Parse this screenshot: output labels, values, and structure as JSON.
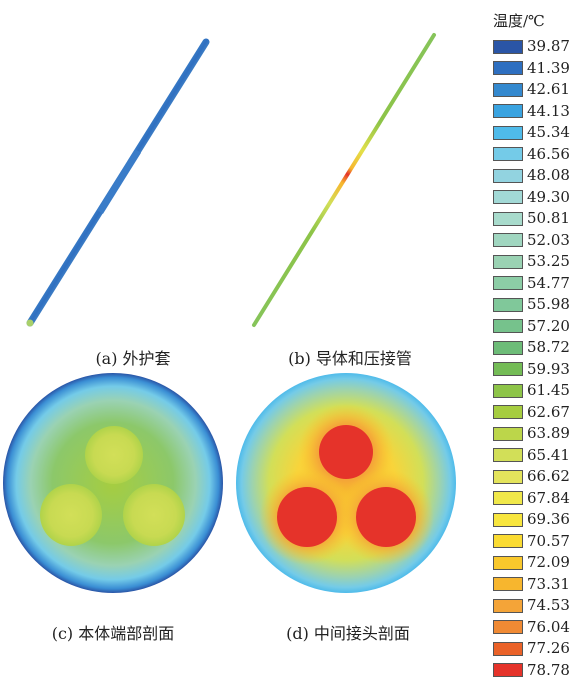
{
  "legend": {
    "title": "温度/℃",
    "items": [
      {
        "label": "39.87",
        "color": "#2a55a6"
      },
      {
        "label": "41.39",
        "color": "#2e6fc0"
      },
      {
        "label": "42.61",
        "color": "#3489cf"
      },
      {
        "label": "44.13",
        "color": "#3aa3e0"
      },
      {
        "label": "45.34",
        "color": "#4fbbea"
      },
      {
        "label": "46.56",
        "color": "#74cbe8"
      },
      {
        "label": "48.08",
        "color": "#92d3e0"
      },
      {
        "label": "49.30",
        "color": "#a2d9d6"
      },
      {
        "label": "50.81",
        "color": "#a8dbcc"
      },
      {
        "label": "52.03",
        "color": "#a0d6c0"
      },
      {
        "label": "53.25",
        "color": "#9ad2b3"
      },
      {
        "label": "54.77",
        "color": "#8ccda6"
      },
      {
        "label": "55.98",
        "color": "#80c89a"
      },
      {
        "label": "57.20",
        "color": "#76c28c"
      },
      {
        "label": "58.72",
        "color": "#6dbc78"
      },
      {
        "label": "59.93",
        "color": "#74bc56"
      },
      {
        "label": "61.45",
        "color": "#8dc448"
      },
      {
        "label": "62.67",
        "color": "#a6cd40"
      },
      {
        "label": "63.89",
        "color": "#bcd64a"
      },
      {
        "label": "65.41",
        "color": "#d2df58"
      },
      {
        "label": "66.62",
        "color": "#e4e45c"
      },
      {
        "label": "67.84",
        "color": "#f0e84a"
      },
      {
        "label": "69.36",
        "color": "#f8e63e"
      },
      {
        "label": "70.57",
        "color": "#fadb32"
      },
      {
        "label": "72.09",
        "color": "#f9c82c"
      },
      {
        "label": "73.31",
        "color": "#f7b62e"
      },
      {
        "label": "74.53",
        "color": "#f4a438"
      },
      {
        "label": "76.04",
        "color": "#f08a34"
      },
      {
        "label": "77.26",
        "color": "#ea6228"
      },
      {
        "label": "78.78",
        "color": "#e5332a"
      }
    ]
  },
  "panels": {
    "a": {
      "caption": "(a) 外护套"
    },
    "b": {
      "caption": "(b) 导体和压接管"
    },
    "c": {
      "caption": "(c) 本体端部剖面"
    },
    "d": {
      "caption": "(d) 中间接头剖面"
    }
  }
}
